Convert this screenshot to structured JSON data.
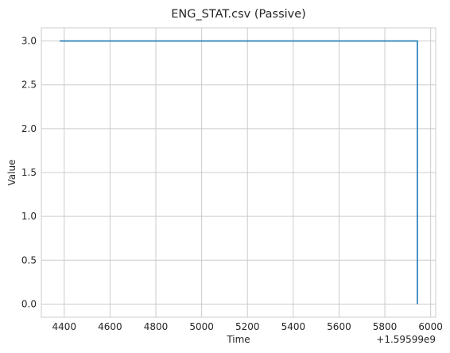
{
  "chart_data": {
    "type": "line",
    "title": "ENG_STAT.csv (Passive)",
    "xlabel": "Time",
    "ylabel": "Value",
    "x_offset_label": "+1.59599e9",
    "x_ticks": [
      {
        "value": 4400,
        "label": "4400"
      },
      {
        "value": 4600,
        "label": "4600"
      },
      {
        "value": 4800,
        "label": "4800"
      },
      {
        "value": 5000,
        "label": "5000"
      },
      {
        "value": 5200,
        "label": "5200"
      },
      {
        "value": 5400,
        "label": "5400"
      },
      {
        "value": 5600,
        "label": "5600"
      },
      {
        "value": 5800,
        "label": "5800"
      },
      {
        "value": 6000,
        "label": "6000"
      }
    ],
    "y_ticks": [
      {
        "value": 0.0,
        "label": "0.0"
      },
      {
        "value": 0.5,
        "label": "0.5"
      },
      {
        "value": 1.0,
        "label": "1.0"
      },
      {
        "value": 1.5,
        "label": "1.5"
      },
      {
        "value": 2.0,
        "label": "2.0"
      },
      {
        "value": 2.5,
        "label": "2.5"
      },
      {
        "value": 3.0,
        "label": "3.0"
      }
    ],
    "xlim": [
      4300,
      6022
    ],
    "ylim": [
      -0.15,
      3.15
    ],
    "grid": true,
    "series": [
      {
        "color": "#1f77b4",
        "x": [
          4380,
          5942,
          5942
        ],
        "y": [
          3,
          3,
          0
        ]
      }
    ]
  }
}
